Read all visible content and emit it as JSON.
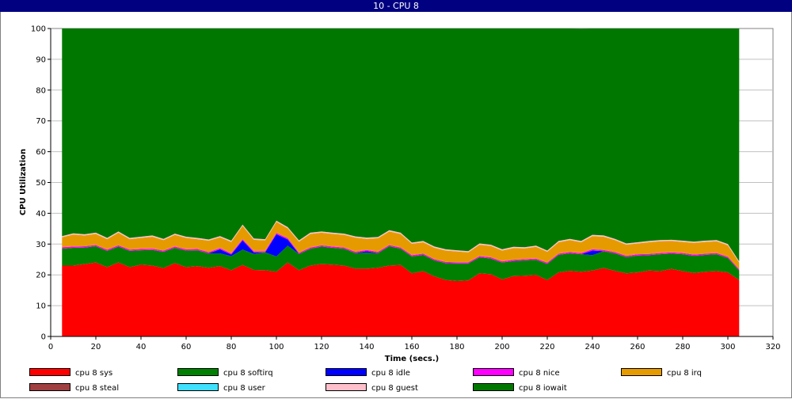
{
  "window_title": "10 - CPU 8",
  "chart_data": {
    "type": "area",
    "stacked": true,
    "title": "",
    "xlabel": "Time (secs.)",
    "ylabel": "CPU Utilization",
    "xlim": [
      0,
      320
    ],
    "ylim": [
      0,
      100
    ],
    "xticks": [
      0,
      20,
      40,
      60,
      80,
      100,
      120,
      140,
      160,
      180,
      200,
      220,
      240,
      260,
      280,
      300,
      320
    ],
    "yticks": [
      0,
      10,
      20,
      30,
      40,
      50,
      60,
      70,
      80,
      90,
      100
    ],
    "grid": "horizontal",
    "legend_position": "bottom",
    "x": [
      5,
      10,
      15,
      20,
      25,
      30,
      35,
      40,
      45,
      50,
      55,
      60,
      65,
      70,
      75,
      80,
      85,
      90,
      95,
      100,
      105,
      110,
      115,
      120,
      125,
      130,
      135,
      140,
      145,
      150,
      155,
      160,
      165,
      170,
      175,
      180,
      185,
      190,
      195,
      200,
      205,
      210,
      215,
      220,
      225,
      230,
      235,
      240,
      245,
      250,
      255,
      260,
      265,
      270,
      275,
      280,
      285,
      290,
      295,
      300,
      305
    ],
    "series": [
      {
        "name": "cpu 8 sys",
        "color": "#ff0000",
        "values": [
          23,
          23,
          23.5,
          24,
          22.5,
          24,
          22.5,
          23.3,
          23,
          22.2,
          23.8,
          22.5,
          22.8,
          22.3,
          22.8,
          21.5,
          23.2,
          21.6,
          21.5,
          21,
          24,
          21.5,
          23,
          23.5,
          23.3,
          23,
          22,
          22,
          22.3,
          23,
          23.2,
          20.5,
          21.2,
          19.5,
          18.3,
          18,
          18.2,
          20.5,
          20.2,
          18.5,
          19.6,
          19.7,
          20,
          18.3,
          20.8,
          21.3,
          21,
          21.4,
          22.2,
          21.3,
          20.5,
          20.8,
          21.4,
          21.2,
          21.9,
          21.2,
          20.6,
          21,
          21.2,
          20.8,
          18.3
        ]
      },
      {
        "name": "cpu 8 softirq",
        "color": "#008000",
        "values": [
          5.5,
          5.8,
          5.4,
          5.3,
          5.3,
          5.2,
          5.3,
          4.7,
          5.1,
          5.3,
          5,
          5.4,
          5.2,
          4.7,
          4.2,
          4.6,
          5,
          5.2,
          5.8,
          5,
          5.5,
          5.3,
          5.5,
          5.7,
          5.5,
          5.5,
          5.1,
          5.2,
          4.8,
          6.3,
          5.3,
          5.5,
          5.3,
          5.2,
          5.5,
          5.7,
          5.5,
          5.2,
          5.1,
          5.5,
          4.9,
          5,
          4.9,
          5.3,
          5.7,
          5.7,
          5.7,
          5,
          5.5,
          5.7,
          5.3,
          5.5,
          5,
          5.5,
          5,
          5.5,
          5.6,
          5.5,
          5.5,
          4.7,
          3.1
        ]
      },
      {
        "name": "cpu 8 idle",
        "color": "#0000ff",
        "values": [
          0,
          0,
          0,
          0,
          0,
          0,
          0,
          0,
          0,
          0,
          0,
          0,
          0,
          0,
          1.3,
          0.5,
          3,
          0.5,
          0,
          7.2,
          2,
          0,
          0,
          0,
          0,
          0,
          0,
          0.5,
          0,
          0,
          0,
          0,
          0,
          0,
          0,
          0,
          0,
          0,
          0,
          0,
          0,
          0,
          0,
          0,
          0,
          0,
          0,
          1.5,
          0,
          0,
          0,
          0,
          0,
          0,
          0,
          0,
          0,
          0,
          0,
          0,
          0
        ]
      },
      {
        "name": "cpu 8 nice",
        "color": "#ff00ff",
        "values": [
          0.5,
          0.4,
          0.4,
          0.4,
          0.4,
          0.4,
          0.4,
          0.4,
          0.4,
          0.4,
          0.4,
          0.4,
          0.4,
          0.4,
          0.4,
          0.4,
          0.4,
          0.4,
          0.4,
          0.4,
          0.4,
          0.4,
          0.4,
          0.4,
          0.4,
          0.4,
          0.4,
          0.4,
          0.4,
          0.4,
          0.4,
          0.4,
          0.4,
          0.4,
          0.4,
          0.4,
          0.4,
          0.4,
          0.4,
          0.4,
          0.4,
          0.4,
          0.4,
          0.4,
          0.4,
          0.4,
          0.4,
          0.4,
          0.4,
          0.4,
          0.4,
          0.4,
          0.4,
          0.4,
          0.4,
          0.4,
          0.4,
          0.4,
          0.4,
          0.4,
          0.4
        ]
      },
      {
        "name": "cpu 8 irq",
        "color": "#e59b00",
        "values": [
          3.2,
          3.9,
          3.5,
          3.6,
          3.4,
          4.1,
          3.4,
          3.6,
          3.9,
          3.4,
          3.8,
          3.7,
          3.2,
          3.7,
          3.5,
          3.7,
          4.3,
          3.7,
          3.5,
          3.6,
          3.2,
          3.6,
          4.4,
          4.1,
          4.1,
          4.1,
          4.6,
          3.6,
          4.4,
          4.4,
          4.4,
          3.7,
          3.7,
          3.7,
          3.7,
          3.5,
          3.2,
          3.7,
          3.7,
          3.5,
          3.8,
          3.5,
          3.8,
          3.5,
          3.7,
          3.9,
          3.5,
          4.3,
          4.3,
          3.9,
          3.6,
          3.5,
          3.8,
          3.8,
          3.7,
          3.6,
          3.8,
          3.8,
          3.8,
          3.7,
          2.2
        ]
      },
      {
        "name": "cpu 8 steal",
        "color": "#a04040",
        "values": [
          0,
          0,
          0,
          0,
          0,
          0,
          0,
          0,
          0,
          0,
          0,
          0,
          0,
          0,
          0,
          0,
          0,
          0,
          0,
          0,
          0,
          0,
          0,
          0,
          0,
          0,
          0,
          0,
          0,
          0,
          0,
          0,
          0,
          0,
          0,
          0,
          0,
          0,
          0,
          0,
          0,
          0,
          0,
          0,
          0,
          0,
          0,
          0,
          0,
          0,
          0,
          0,
          0,
          0,
          0,
          0,
          0,
          0,
          0,
          0,
          0
        ]
      },
      {
        "name": "cpu 8 user",
        "color": "#40e0ff",
        "values": [
          0,
          0,
          0,
          0,
          0,
          0,
          0,
          0,
          0,
          0,
          0,
          0,
          0,
          0,
          0,
          0,
          0,
          0,
          0,
          0,
          0,
          0,
          0,
          0,
          0,
          0,
          0,
          0,
          0,
          0,
          0,
          0,
          0,
          0,
          0,
          0,
          0,
          0,
          0,
          0,
          0,
          0,
          0,
          0,
          0,
          0,
          0,
          0,
          0,
          0,
          0,
          0,
          0,
          0,
          0,
          0,
          0,
          0,
          0,
          0,
          0
        ]
      },
      {
        "name": "cpu 8 guest",
        "color": "#ffc0cb",
        "values": [
          0.4,
          0.4,
          0.4,
          0.4,
          0.4,
          0.4,
          0.4,
          0.4,
          0.4,
          0.4,
          0.4,
          0.4,
          0.4,
          0.4,
          0.4,
          0.4,
          0.4,
          0.4,
          0.4,
          0.4,
          0.4,
          0.4,
          0.4,
          0.4,
          0.4,
          0.4,
          0.4,
          0.4,
          0.4,
          0.4,
          0.4,
          0.4,
          0.4,
          0.4,
          0.4,
          0.4,
          0.4,
          0.4,
          0.4,
          0.4,
          0.4,
          0.4,
          0.4,
          0.4,
          0.4,
          0.4,
          0.4,
          0.4,
          0.4,
          0.4,
          0.4,
          0.4,
          0.4,
          0.4,
          0.4,
          0.4,
          0.4,
          0.4,
          0.4,
          0.4,
          0.4
        ]
      },
      {
        "name": "cpu 8 iowait",
        "color": "#007800",
        "values": [
          67.4,
          66.5,
          66.8,
          66.3,
          68,
          65.9,
          68,
          67.6,
          67.2,
          68.3,
          66.6,
          67.6,
          68,
          68.5,
          67.4,
          68.9,
          63.7,
          68.2,
          68.4,
          62.4,
          64.5,
          68.8,
          66.3,
          66.3,
          66.7,
          66.6,
          67.5,
          67.9,
          67.7,
          65.5,
          66.3,
          69.5,
          69,
          70.8,
          72.1,
          72.4,
          72.7,
          69.8,
          70.2,
          71.7,
          70.9,
          71,
          70.5,
          72.1,
          69,
          68.3,
          68.9,
          67.4,
          67.2,
          68.3,
          69.8,
          69.4,
          69,
          68.7,
          68.6,
          68.9,
          69.2,
          68.9,
          68.7,
          70,
          75.6
        ]
      }
    ],
    "legend": [
      {
        "name": "cpu 8 sys",
        "color": "#ff0000"
      },
      {
        "name": "cpu 8 softirq",
        "color": "#008000"
      },
      {
        "name": "cpu 8 idle",
        "color": "#0000ff"
      },
      {
        "name": "cpu 8 nice",
        "color": "#ff00ff"
      },
      {
        "name": "cpu 8 irq",
        "color": "#e59b00"
      },
      {
        "name": "cpu 8 steal",
        "color": "#a04040"
      },
      {
        "name": "cpu 8 user",
        "color": "#40e0ff"
      },
      {
        "name": "cpu 8 guest",
        "color": "#ffc0cb"
      },
      {
        "name": "cpu 8 iowait",
        "color": "#007800"
      }
    ]
  }
}
